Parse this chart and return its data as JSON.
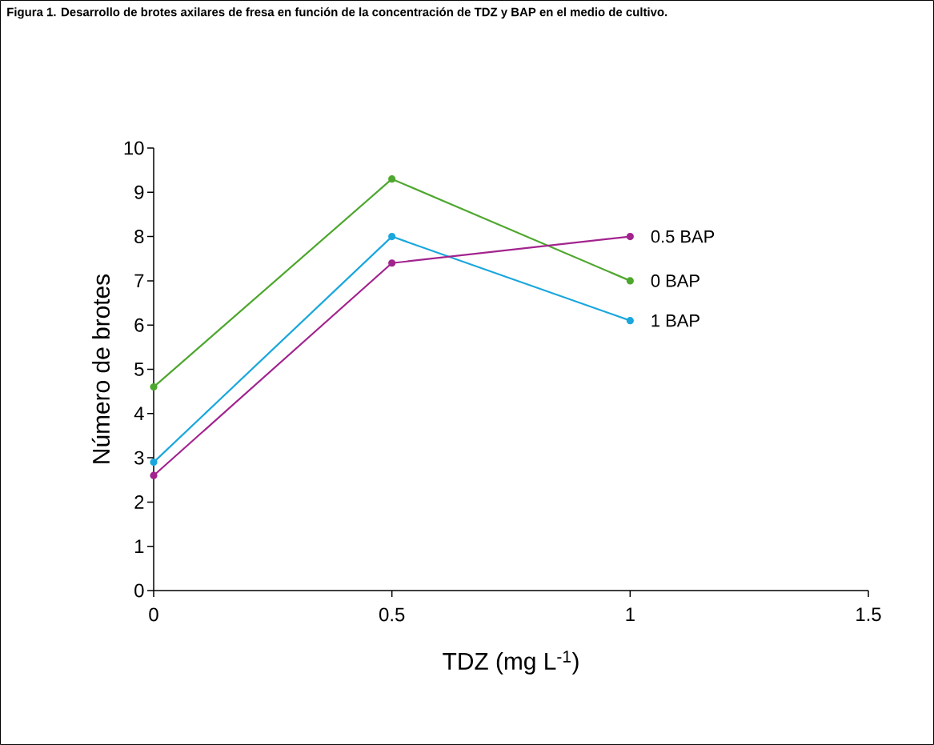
{
  "chart_data": {
    "type": "line",
    "title": "Figura 1. Desarrollo de brotes axilares de fresa en función de la concentración de TDZ y BAP en el medio de cultivo.",
    "xlabel": "TDZ (mg L$^{-1}$)",
    "ylabel": "Número de brotes",
    "x": [
      0,
      0.5,
      1
    ],
    "series": [
      {
        "name": "0 BAP",
        "color": "#4ea72e",
        "values": [
          4.6,
          9.3,
          7.0
        ]
      },
      {
        "name": "1 BAP",
        "color": "#1aa7dd",
        "values": [
          2.9,
          8.0,
          6.1
        ]
      },
      {
        "name": "0.5 BAP",
        "color": "#a2238e",
        "values": [
          2.6,
          7.4,
          8.0
        ]
      }
    ],
    "xlim": [
      0,
      1.5
    ],
    "xticks": [
      0,
      0.5,
      1,
      1.5
    ],
    "ylim": [
      0,
      10
    ],
    "yticks": [
      0,
      1,
      2,
      3,
      4,
      5,
      6,
      7,
      8,
      9,
      10
    ],
    "grid": false,
    "legend": false,
    "marker": "circle",
    "line_style": "solid"
  }
}
